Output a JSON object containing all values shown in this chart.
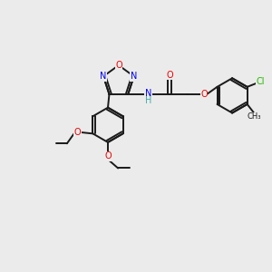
{
  "bg_color": "#ebebeb",
  "bond_color": "#1a1a1a",
  "colors": {
    "N": "#0000ee",
    "O": "#ee0000",
    "Cl": "#22bb00",
    "H": "#44aaaa"
  },
  "lw": 1.4,
  "fs": 7.0
}
